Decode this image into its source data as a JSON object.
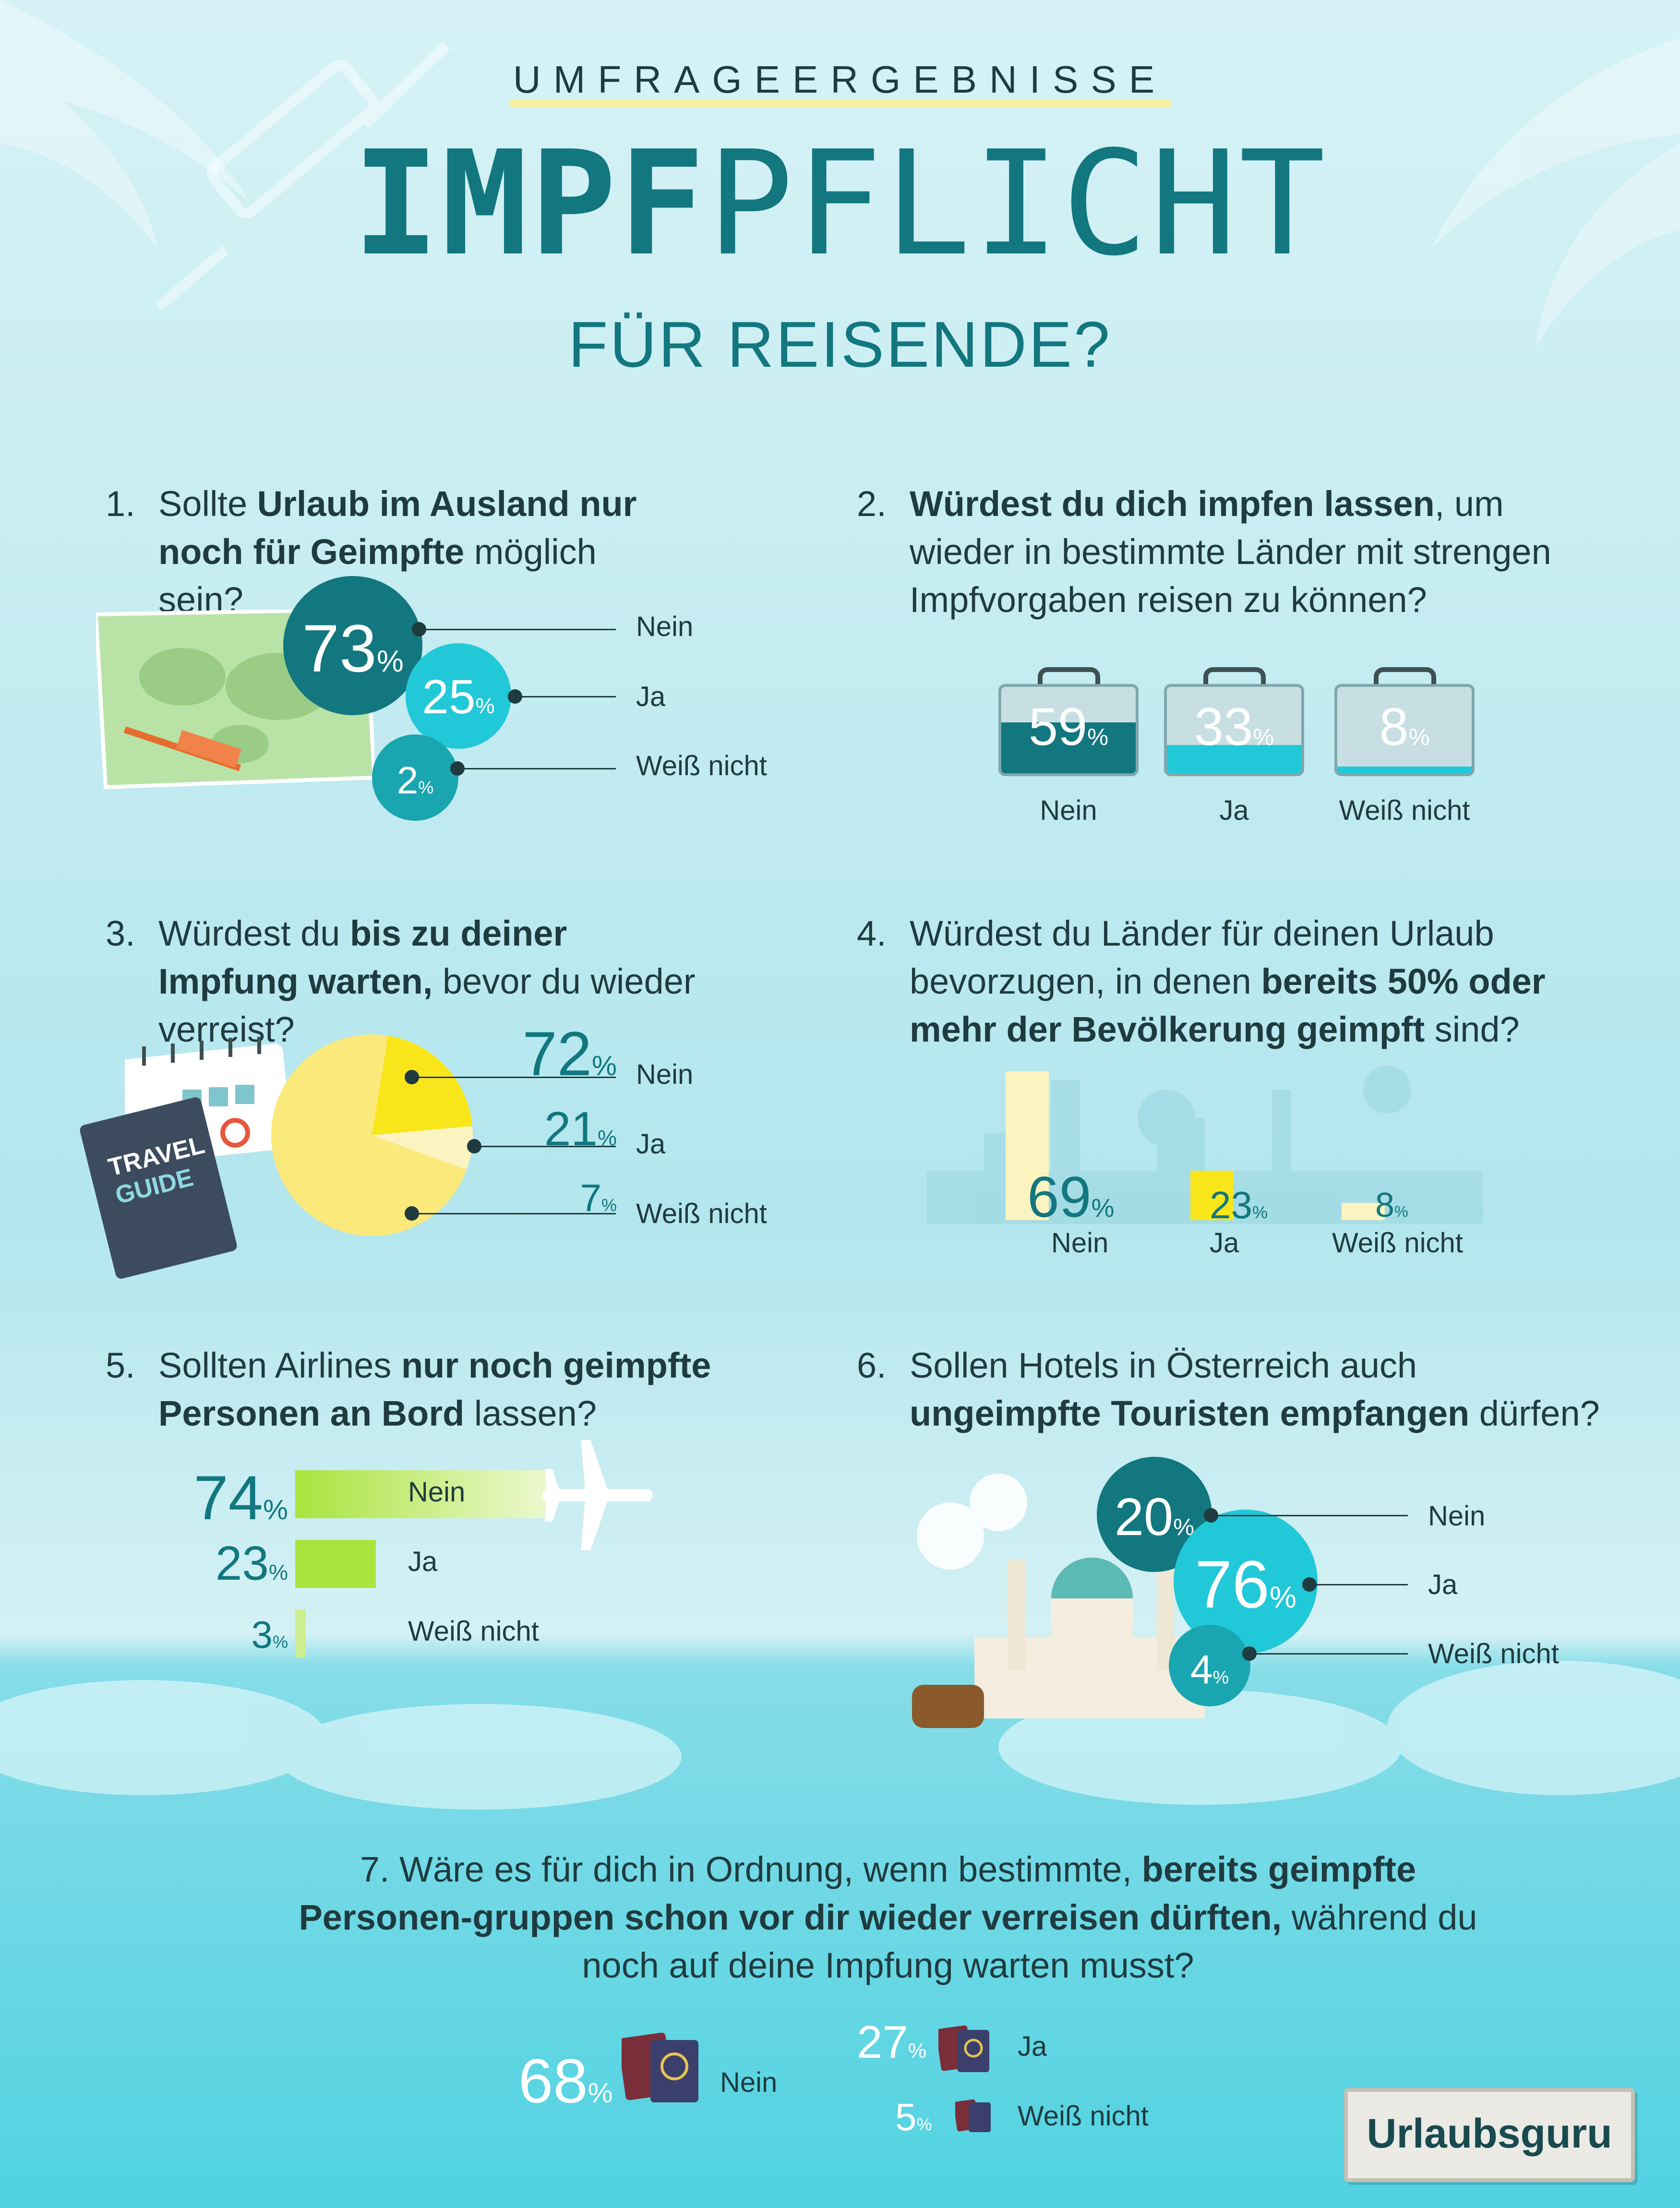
{
  "header": {
    "kicker": "UMFRAGEERGEBNISSE",
    "title_bold": "IMPF",
    "title_light": "PFLICHT",
    "subtitle": "FÜR REISENDE?"
  },
  "colors": {
    "dark_teal": "#12777f",
    "teal": "#1aa6b0",
    "cyan": "#21c8d8",
    "yellow": "#fbe97b",
    "bright_yellow": "#f8e61b",
    "pale_yellow": "#fbf3c0",
    "lime": "#a9e33c",
    "light_lime": "#cdee8e"
  },
  "q1": {
    "num": "1.",
    "pre": "Sollte ",
    "bold": "Urlaub im Ausland nur noch für Geimpfte",
    "post": " möglich sein?",
    "labels": [
      "Nein",
      "Ja",
      "Weiß nicht"
    ],
    "values": [
      "73",
      "25",
      "2"
    ]
  },
  "q2": {
    "num": "2.",
    "bold": "Würdest du dich impfen lassen",
    "post": ", um wieder in bestimmte Länder mit strengen Impfvorgaben reisen zu können?",
    "labels": [
      "Nein",
      "Ja",
      "Weiß nicht"
    ],
    "values": [
      "59",
      "33",
      "8"
    ]
  },
  "q3": {
    "num": "3.",
    "pre": "Würdest du ",
    "bold": "bis zu deiner Impfung warten,",
    "post": " bevor du wieder verreist?",
    "labels": [
      "Nein",
      "Ja",
      "Weiß nicht"
    ],
    "values": [
      "72",
      "21",
      "7"
    ],
    "book": [
      "TRAVEL",
      "GUIDE"
    ]
  },
  "q4": {
    "num": "4.",
    "pre": "Würdest du Länder für deinen Urlaub bevorzugen, in denen ",
    "bold": "bereits 50% oder mehr der Bevölkerung geimpft",
    "post": " sind?",
    "labels": [
      "Nein",
      "Ja",
      "Weiß nicht"
    ],
    "values": [
      "69",
      "23",
      "8"
    ]
  },
  "q5": {
    "num": "5.",
    "pre": "Sollten Airlines ",
    "bold": "nur noch geimpfte Personen an Bord",
    "post": " lassen?",
    "labels": [
      "Nein",
      "Ja",
      "Weiß nicht"
    ],
    "values": [
      "74",
      "23",
      "3"
    ]
  },
  "q6": {
    "num": "6.",
    "pre": "Sollen Hotels in Österreich auch ",
    "bold": "ungeimpfte Touristen empfangen",
    "post": " dürfen?",
    "labels": [
      "Nein",
      "Ja",
      "Weiß nicht"
    ],
    "values": [
      "20",
      "76",
      "4"
    ]
  },
  "q7": {
    "num": "7.",
    "pre": "Wäre es für dich in Ordnung, wenn bestimmte, ",
    "bold": "bereits geimpfte Personen-gruppen schon vor dir wieder verreisen dürften,",
    "post": " während du noch auf deine Impfung warten musst?",
    "labels": [
      "Nein",
      "Ja",
      "Weiß nicht"
    ],
    "values": [
      "68",
      "27",
      "5"
    ]
  },
  "percent_sign": "%",
  "logo": "Urlaubsguru",
  "chart_data": [
    {
      "type": "bar",
      "title": "Sollte Urlaub im Ausland nur noch für Geimpfte möglich sein?",
      "categories": [
        "Nein",
        "Ja",
        "Weiß nicht"
      ],
      "values": [
        73,
        25,
        2
      ],
      "unit": "%"
    },
    {
      "type": "bar",
      "title": "Würdest du dich impfen lassen, um wieder in bestimmte Länder mit strengen Impfvorgaben reisen zu können?",
      "categories": [
        "Nein",
        "Ja",
        "Weiß nicht"
      ],
      "values": [
        59,
        33,
        8
      ],
      "unit": "%"
    },
    {
      "type": "pie",
      "title": "Würdest du bis zu deiner Impfung warten, bevor du wieder verreist?",
      "categories": [
        "Nein",
        "Ja",
        "Weiß nicht"
      ],
      "values": [
        72,
        21,
        7
      ],
      "unit": "%"
    },
    {
      "type": "bar",
      "title": "Würdest du Länder für deinen Urlaub bevorzugen, in denen bereits 50% oder mehr der Bevölkerung geimpft sind?",
      "categories": [
        "Nein",
        "Ja",
        "Weiß nicht"
      ],
      "values": [
        69,
        23,
        8
      ],
      "unit": "%"
    },
    {
      "type": "bar",
      "title": "Sollten Airlines nur noch geimpfte Personen an Bord lassen?",
      "categories": [
        "Nein",
        "Ja",
        "Weiß nicht"
      ],
      "values": [
        74,
        23,
        3
      ],
      "unit": "%"
    },
    {
      "type": "bar",
      "title": "Sollen Hotels in Österreich auch ungeimpfte Touristen empfangen dürfen?",
      "categories": [
        "Nein",
        "Ja",
        "Weiß nicht"
      ],
      "values": [
        20,
        76,
        4
      ],
      "unit": "%"
    },
    {
      "type": "bar",
      "title": "Wäre es für dich in Ordnung, wenn bestimmte, bereits geimpfte Personengruppen schon vor dir wieder verreisen dürften, während du noch auf deine Impfung warten musst?",
      "categories": [
        "Nein",
        "Ja",
        "Weiß nicht"
      ],
      "values": [
        68,
        27,
        5
      ],
      "unit": "%"
    }
  ]
}
